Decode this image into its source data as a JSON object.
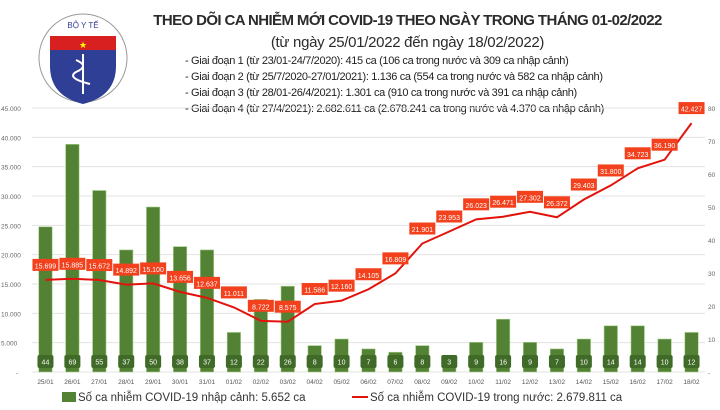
{
  "header": {
    "logo_text": "BỘ Y TẾ",
    "title": "THEO DÕI CA NHIỄM MỚI COVID-19 THEO NGÀY TRONG THÁNG 01-02/2022",
    "subtitle": "(từ ngày 25/01/2022 đến ngày 18/02/2022)",
    "stages": [
      "- Giai đoạn 1 (từ 23/01-24/7/2020): 415 ca (106 ca trong nước và 309 ca nhập cảnh)",
      "- Giai đoạn 2 (từ 25/7/2020-27/01/2021): 1.136 ca (554 ca trong nước và 582 ca nhập cảnh)",
      "- Giai đoạn 3 (từ 28/01-26/4/2021): 1.301 ca (910 ca trong nước và 391 ca nhập cảnh)",
      "- Giai đoạn 4 (từ 27/4/2021): 2.682.611 ca (2.678.241 ca trong nước và 4.370 ca nhập cảnh)"
    ]
  },
  "chart_data": {
    "type": "bar+line",
    "categories": [
      "25/01",
      "26/01",
      "27/01",
      "28/01",
      "29/01",
      "30/01",
      "31/01",
      "01/02",
      "02/02",
      "03/02",
      "04/02",
      "05/02",
      "06/02",
      "07/02",
      "08/02",
      "09/02",
      "10/02",
      "11/02",
      "12/02",
      "13/02",
      "14/02",
      "15/02",
      "16/02",
      "17/02",
      "18/02"
    ],
    "series": [
      {
        "name": "Số ca nhiễm COVID-19 nhập cảnh: 5.652 ca",
        "type": "bar",
        "axis": "right",
        "color": "#548235",
        "values": [
          44,
          69,
          55,
          37,
          50,
          38,
          37,
          12,
          22,
          26,
          8,
          10,
          7,
          6,
          8,
          3,
          9,
          16,
          9,
          7,
          10,
          14,
          14,
          10,
          12
        ]
      },
      {
        "name": "Số ca nhiễm COVID-19 trong nước: 2.679.811 ca",
        "type": "line",
        "axis": "left",
        "color": "#e3120b",
        "values": [
          15699,
          15885,
          15672,
          14892,
          15100,
          13656,
          12637,
          11011,
          8722,
          8575,
          11586,
          12160,
          14105,
          16809,
          21901,
          23953,
          26023,
          26471,
          27302,
          26372,
          29403,
          31800,
          34723,
          36190,
          42427
        ]
      }
    ],
    "y_left": {
      "range": [
        0,
        45000
      ],
      "ticks": [
        "-",
        "5.000",
        "10.000",
        "15.000",
        "20.000",
        "25.000",
        "30.000",
        "35.000",
        "40.000",
        "45.000"
      ]
    },
    "y_right": {
      "range": [
        0,
        80
      ],
      "ticks": [
        "-",
        "10",
        "20",
        "30",
        "40",
        "50",
        "60",
        "70",
        "80"
      ]
    },
    "grid": true,
    "legend_position": "bottom",
    "label_color": "#f2411c"
  }
}
